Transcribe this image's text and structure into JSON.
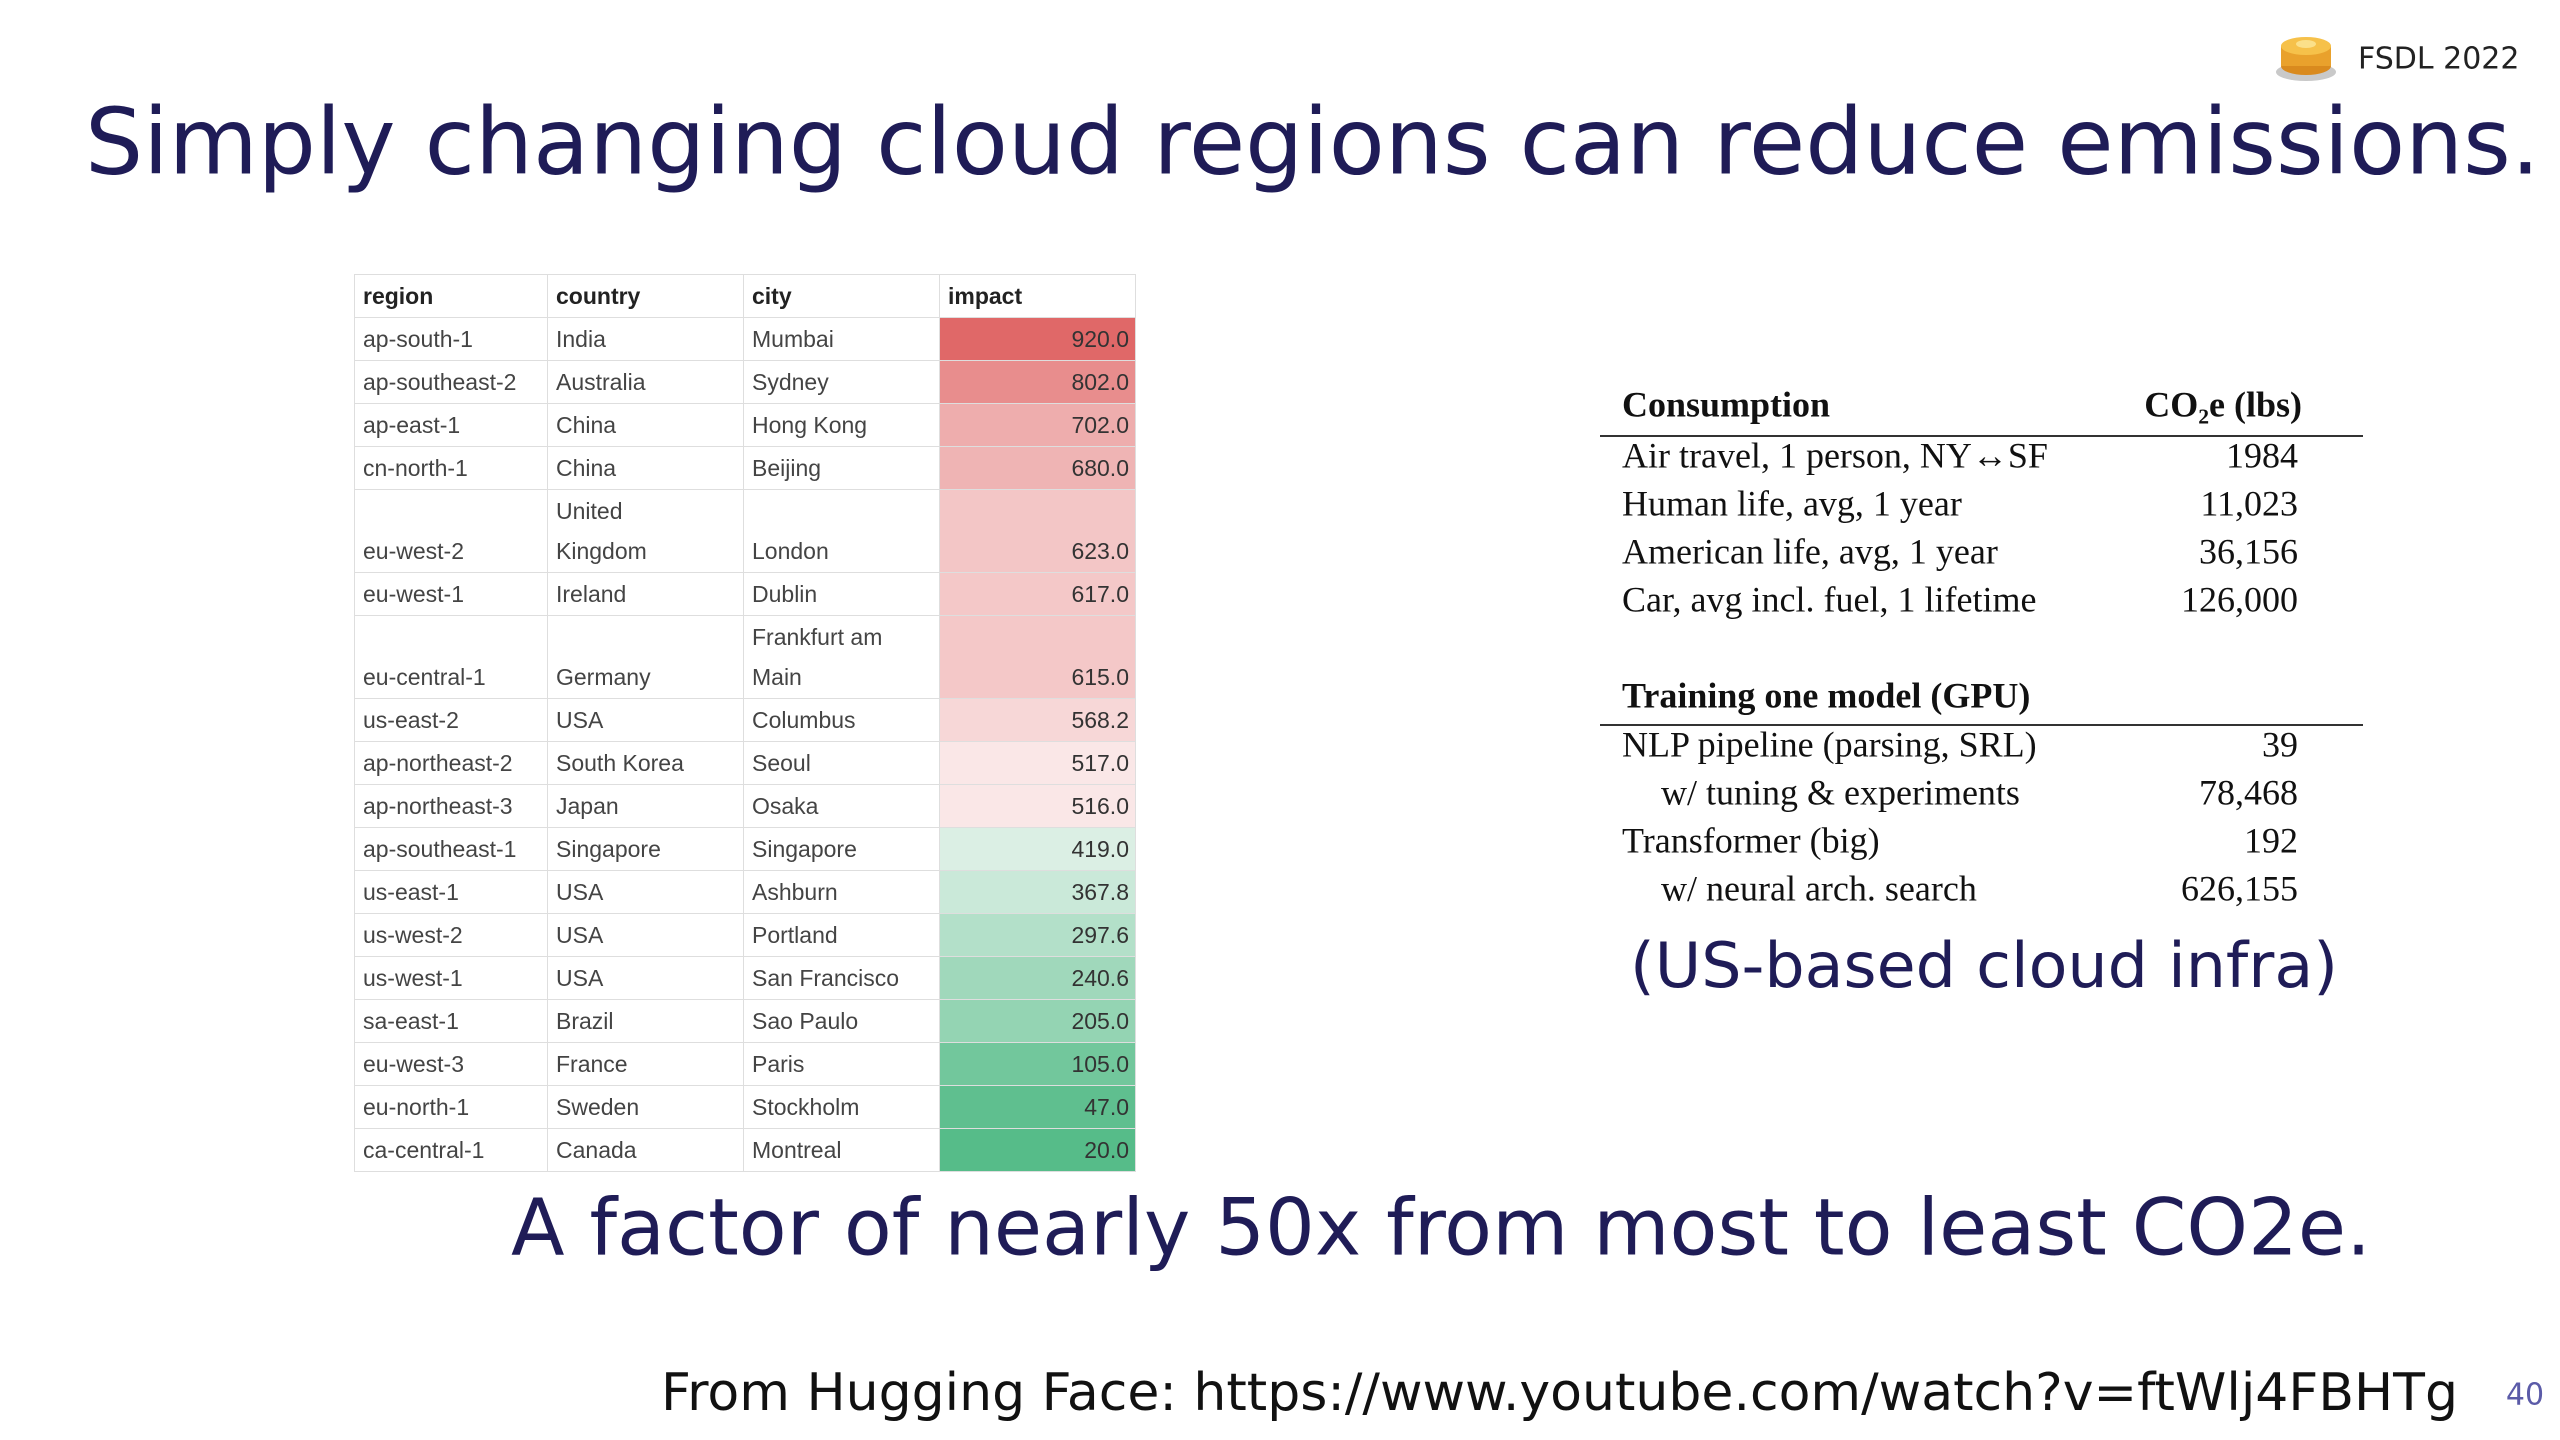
{
  "header": {
    "badge": "FSDL 2022"
  },
  "title": "Simply changing cloud regions can reduce emissions.",
  "region_table": {
    "columns": [
      "region",
      "country",
      "city",
      "impact"
    ],
    "rows": [
      [
        "ap-south-1",
        "India",
        "Mumbai",
        "920.0"
      ],
      [
        "ap-southeast-2",
        "Australia",
        "Sydney",
        "802.0"
      ],
      [
        "ap-east-1",
        "China",
        "Hong Kong",
        "702.0"
      ],
      [
        "cn-north-1",
        "China",
        "Beijing",
        "680.0"
      ],
      [
        "eu-west-2",
        "United Kingdom",
        "London",
        "623.0"
      ],
      [
        "eu-west-1",
        "Ireland",
        "Dublin",
        "617.0"
      ],
      [
        "eu-central-1",
        "Germany",
        "Frankfurt am Main",
        "615.0"
      ],
      [
        "us-east-2",
        "USA",
        "Columbus",
        "568.2"
      ],
      [
        "ap-northeast-2",
        "South Korea",
        "Seoul",
        "517.0"
      ],
      [
        "ap-northeast-3",
        "Japan",
        "Osaka",
        "516.0"
      ],
      [
        "ap-southeast-1",
        "Singapore",
        "Singapore",
        "419.0"
      ],
      [
        "us-east-1",
        "USA",
        "Ashburn",
        "367.8"
      ],
      [
        "us-west-2",
        "USA",
        "Portland",
        "297.6"
      ],
      [
        "us-west-1",
        "USA",
        "San Francisco",
        "240.6"
      ],
      [
        "sa-east-1",
        "Brazil",
        "Sao Paulo",
        "205.0"
      ],
      [
        "eu-west-3",
        "France",
        "Paris",
        "105.0"
      ],
      [
        "eu-north-1",
        "Sweden",
        "Stockholm",
        "47.0"
      ],
      [
        "ca-central-1",
        "Canada",
        "Montreal",
        "20.0"
      ]
    ]
  },
  "consumption_table": {
    "columns": [
      "Consumption",
      "CO₂e (lbs)"
    ],
    "sections": [
      {
        "rows": [
          {
            "label": "Air travel, 1 person, NY↔SF",
            "value": "1984"
          },
          {
            "label": "Human life, avg, 1 year",
            "value": "11,023"
          },
          {
            "label": "American life, avg, 1 year",
            "value": "36,156"
          },
          {
            "label": "Car, avg incl. fuel, 1 lifetime",
            "value": "126,000"
          }
        ]
      },
      {
        "title": "Training one model (GPU)",
        "rows": [
          {
            "label": "NLP pipeline (parsing, SRL)",
            "value": "39",
            "variants": [
              {
                "label": "w/ tuning & experiments",
                "value": "78,468"
              }
            ]
          },
          {
            "label": "Transformer (big)",
            "value": "192",
            "variants": [
              {
                "label": "w/ neural arch. search",
                "value": "626,155"
              }
            ]
          }
        ]
      }
    ]
  },
  "note": "(US-based cloud infra)",
  "takeaway": "A factor of nearly 50x from most to least CO2e.",
  "source": "From Hugging Face: https://www.youtube.com/watch?v=ftWlj4FBHTg",
  "page_number": "40"
}
